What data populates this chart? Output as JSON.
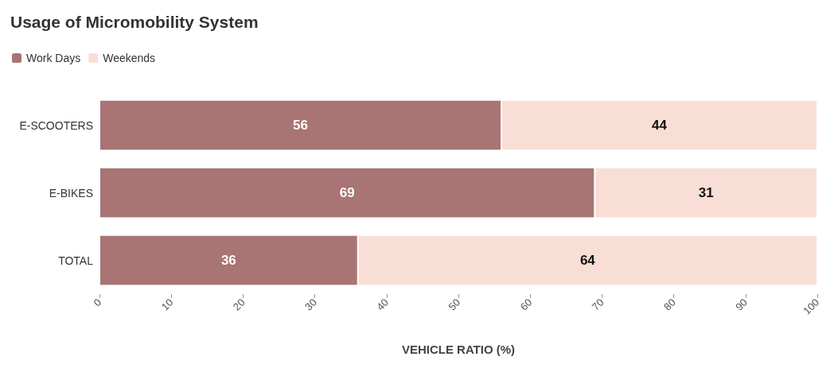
{
  "chart_data": {
    "type": "bar",
    "orientation": "horizontal",
    "stacked": true,
    "title": "Usage of Micromobility System",
    "xlabel": "VEHICLE RATIO (%)",
    "categories": [
      "E-SCOOTERS",
      "E-BIKES",
      "TOTAL"
    ],
    "series": [
      {
        "name": "Work Days",
        "color": "#a87474",
        "values": [
          56,
          69,
          36
        ]
      },
      {
        "name": "Weekends",
        "color": "#f9ded6",
        "values": [
          44,
          31,
          64
        ]
      }
    ],
    "xlim": [
      0,
      100
    ],
    "xticks": [
      0,
      10,
      20,
      30,
      40,
      50,
      60,
      70,
      80,
      90,
      100
    ],
    "data_labels": true,
    "legend": "top left",
    "grid": false
  }
}
